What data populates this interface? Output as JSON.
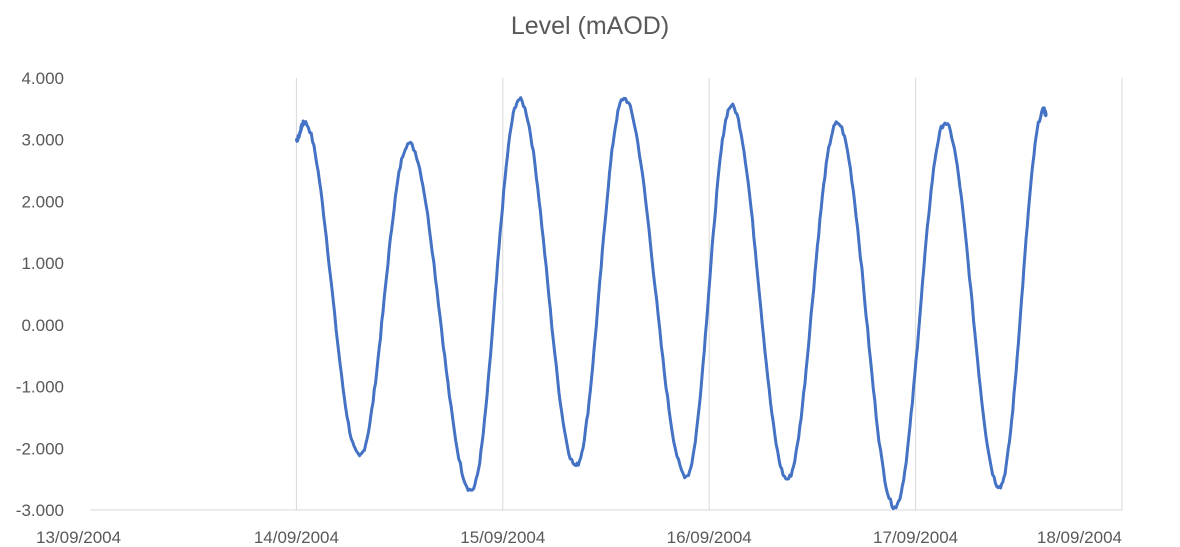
{
  "chart_data": {
    "type": "line",
    "title": "Level (mAOD)",
    "xlabel": "",
    "ylabel": "",
    "x_axis": {
      "min": "13/09/2004",
      "max": "18/09/2004",
      "ticks": [
        "13/09/2004",
        "14/09/2004",
        "15/09/2004",
        "16/09/2004",
        "17/09/2004",
        "18/09/2004"
      ]
    },
    "y_axis": {
      "min": -3,
      "max": 4,
      "ticks": [
        "4.000",
        "3.000",
        "2.000",
        "1.000",
        "0.000",
        "-1.000",
        "-2.000",
        "-3.000"
      ]
    },
    "grid": {
      "vertical": true,
      "horizontal": false
    },
    "series": [
      {
        "color": "#4472C4",
        "extrema": [
          {
            "x": "14/09/2004 00:00",
            "y": 3.0
          },
          {
            "x": "14/09/2004 00:55",
            "y": 3.28
          },
          {
            "x": "14/09/2004 07:20",
            "y": -2.12
          },
          {
            "x": "14/09/2004 13:05",
            "y": 2.94
          },
          {
            "x": "14/09/2004 20:20",
            "y": -2.68
          },
          {
            "x": "15/09/2004 01:55",
            "y": 3.65
          },
          {
            "x": "15/09/2004 08:30",
            "y": -2.28
          },
          {
            "x": "15/09/2004 14:05",
            "y": 3.67
          },
          {
            "x": "15/09/2004 21:20",
            "y": -2.45
          },
          {
            "x": "16/09/2004 02:35",
            "y": 3.55
          },
          {
            "x": "16/09/2004 09:05",
            "y": -2.5
          },
          {
            "x": "16/09/2004 14:55",
            "y": 3.27
          },
          {
            "x": "16/09/2004 21:35",
            "y": -2.95
          },
          {
            "x": "17/09/2004 03:25",
            "y": 3.27
          },
          {
            "x": "17/09/2004 09:45",
            "y": -2.62
          },
          {
            "x": "17/09/2004 14:55",
            "y": 3.48
          },
          {
            "x": "17/09/2004 15:10",
            "y": 3.42
          }
        ]
      }
    ]
  }
}
